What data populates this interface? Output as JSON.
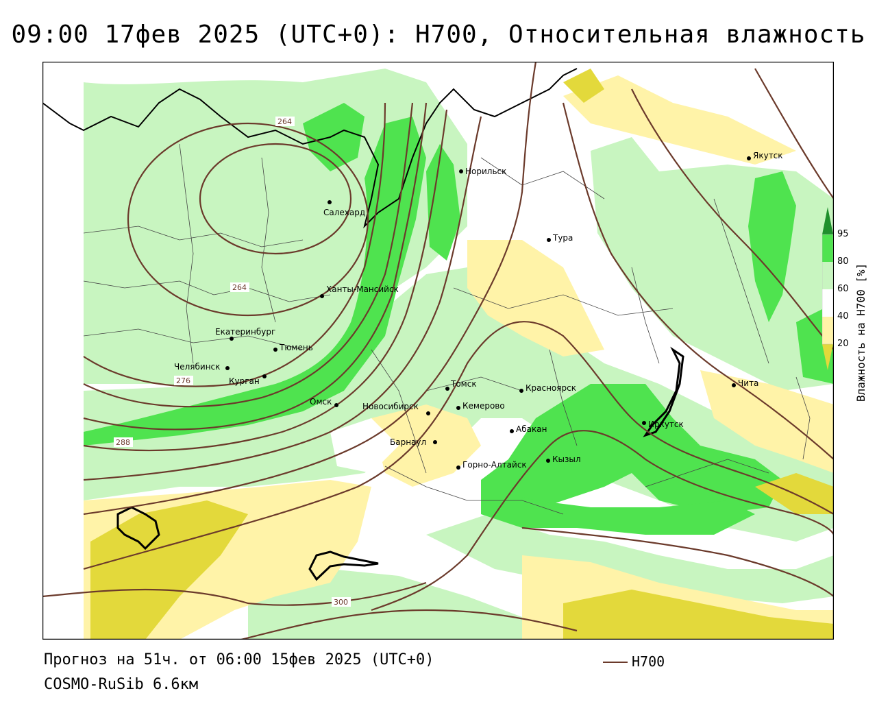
{
  "header": {
    "title": "09:00 17фев 2025 (UTC+0): H700, Относительная влажность"
  },
  "footer": {
    "forecast": "Прогноз на 51ч. от 06:00 15фев 2025 (UTC+0)",
    "model": "COSMO-RuSib 6.6км",
    "line_legend": "H700",
    "line_color": "#6b3a2b"
  },
  "colorbar": {
    "title": "Влажность на H700 [%]",
    "ticks": [
      "95",
      "80",
      "60",
      "40",
      "20"
    ],
    "colors": {
      "gt95": "#1f8f2c",
      "80_95": "#4fe34f",
      "60_80": "#c8f5c0",
      "40_60": "#ffffff",
      "20_40": "#fff3a8",
      "lt20": "#e3d93b"
    }
  },
  "map": {
    "cities": [
      {
        "name": "Норильск"
      },
      {
        "name": "Якутск"
      },
      {
        "name": "Салехард"
      },
      {
        "name": "Тура"
      },
      {
        "name": "Ханты-Мансийск"
      },
      {
        "name": "Екатеринбург"
      },
      {
        "name": "Тюмень"
      },
      {
        "name": "Челябинск"
      },
      {
        "name": "Курган"
      },
      {
        "name": "Омск"
      },
      {
        "name": "Новосибирск"
      },
      {
        "name": "Томск"
      },
      {
        "name": "Кемерово"
      },
      {
        "name": "Красноярск"
      },
      {
        "name": "Абакан"
      },
      {
        "name": "Барнаул"
      },
      {
        "name": "Горно-Алтайск"
      },
      {
        "name": "Кызыл"
      },
      {
        "name": "Иркутск"
      },
      {
        "name": "Чита"
      }
    ],
    "contour_labels": [
      "264",
      "264",
      "276",
      "288",
      "300"
    ]
  }
}
